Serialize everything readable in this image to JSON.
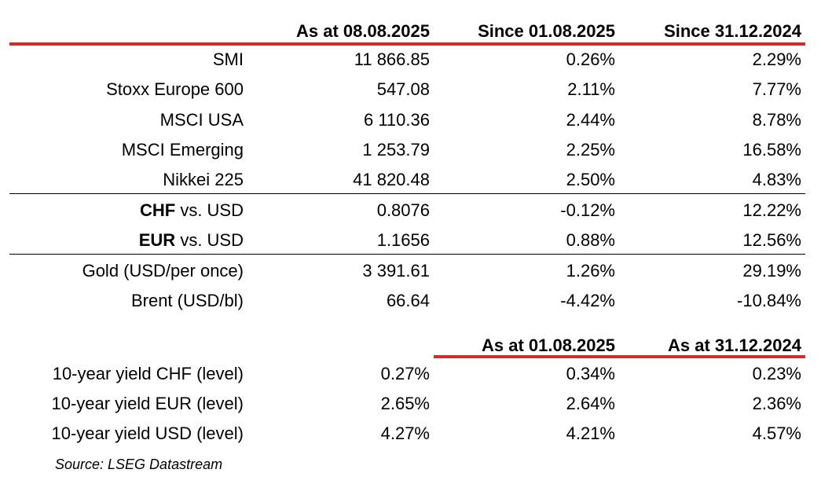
{
  "header1": {
    "c1": "As at 08.08.2025",
    "c2": "Since 01.08.2025",
    "c3": "Since 31.12.2024"
  },
  "rows": [
    {
      "label": "SMI",
      "c1": "11 866.85",
      "c2": "0.26%",
      "c3": "2.29%"
    },
    {
      "label": "Stoxx Europe 600",
      "c1": "547.08",
      "c2": "2.11%",
      "c3": "7.77%"
    },
    {
      "label": "MSCI USA",
      "c1": "6 110.36",
      "c2": "2.44%",
      "c3": "8.78%"
    },
    {
      "label": "MSCI Emerging",
      "c1": "1 253.79",
      "c2": "2.25%",
      "c3": "16.58%"
    },
    {
      "label": "Nikkei 225",
      "c1": "41 820.48",
      "c2": "2.50%",
      "c3": "4.83%"
    }
  ],
  "fx": [
    {
      "cur": "CHF",
      "suffix": " vs. USD",
      "c1": "0.8076",
      "c2": "-0.12%",
      "c3": "12.22%"
    },
    {
      "cur": "EUR",
      "suffix": " vs. USD",
      "c1": "1.1656",
      "c2": "0.88%",
      "c3": "12.56%"
    }
  ],
  "commodities": [
    {
      "label": "Gold (USD/per once)",
      "c1": "3 391.61",
      "c2": "1.26%",
      "c3": "29.19%"
    },
    {
      "label": "Brent (USD/bl)",
      "c1": "66.64",
      "c2": "-4.42%",
      "c3": "-10.84%"
    }
  ],
  "header2": {
    "c2": "As at 01.08.2025",
    "c3": "As at 31.12.2024"
  },
  "yields": [
    {
      "label": "10-year yield CHF (level)",
      "c1": "0.27%",
      "c2": "0.34%",
      "c3": "0.23%"
    },
    {
      "label": "10-year yield EUR (level)",
      "c1": "2.65%",
      "c2": "2.64%",
      "c3": "2.36%"
    },
    {
      "label": "10-year yield USD (level)",
      "c1": "4.27%",
      "c2": "4.21%",
      "c3": "4.57%"
    }
  ],
  "source": "Source: LSEG Datastream",
  "colors": {
    "rule_red": "#d22b2b",
    "rule_black": "#000000"
  }
}
